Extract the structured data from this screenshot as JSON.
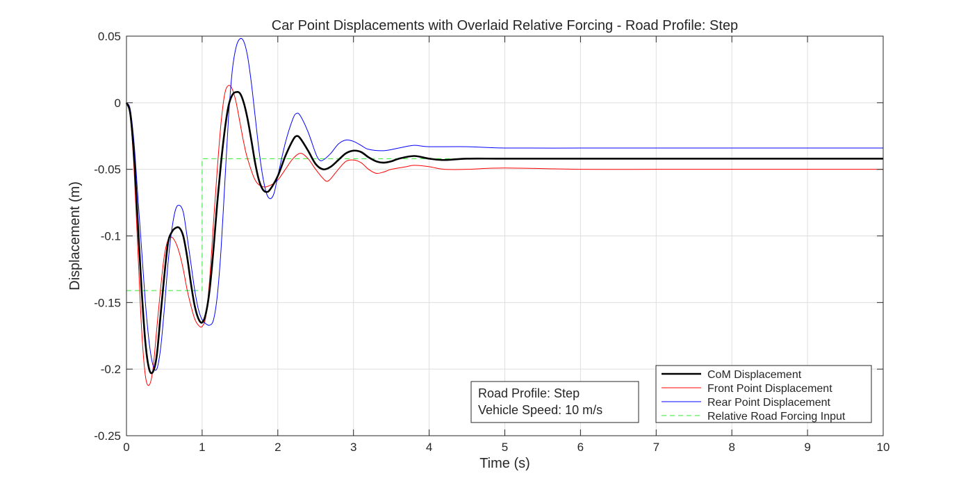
{
  "chart_data": {
    "type": "line",
    "title": "Car Point Displacements with Overlaid Relative Forcing - Road Profile: Step",
    "xlabel": "Time (s)",
    "ylabel": "Displacement (m)",
    "xlim": [
      0,
      10
    ],
    "ylim": [
      -0.25,
      0.05
    ],
    "x_ticks": [
      "0",
      "1",
      "2",
      "3",
      "4",
      "5",
      "6",
      "7",
      "8",
      "9",
      "10"
    ],
    "y_ticks": [
      "-0.25",
      "-0.2",
      "-0.15",
      "-0.1",
      "-0.05",
      "0",
      "0.05"
    ],
    "x_tick_values": [
      0,
      1,
      2,
      3,
      4,
      5,
      6,
      7,
      8,
      9,
      10
    ],
    "y_tick_values": [
      -0.25,
      -0.2,
      -0.15,
      -0.1,
      -0.05,
      0,
      0.05
    ],
    "grid": true,
    "legend_position": "bottom-right",
    "annotation": [
      "Road Profile: Step",
      "Vehicle Speed: 10 m/s"
    ],
    "series": [
      {
        "name": "CoM Displacement",
        "color": "#000000",
        "style": "solid",
        "weight": "thick",
        "x": [
          0,
          0.05,
          0.1,
          0.15,
          0.2,
          0.25,
          0.3,
          0.35,
          0.4,
          0.45,
          0.5,
          0.55,
          0.6,
          0.65,
          0.7,
          0.75,
          0.8,
          0.85,
          0.9,
          0.95,
          1.0,
          1.05,
          1.1,
          1.15,
          1.2,
          1.25,
          1.3,
          1.35,
          1.4,
          1.45,
          1.5,
          1.55,
          1.6,
          1.65,
          1.7,
          1.75,
          1.8,
          1.85,
          1.9,
          2.0,
          2.1,
          2.2,
          2.25,
          2.3,
          2.4,
          2.5,
          2.6,
          2.7,
          2.8,
          2.9,
          3.0,
          3.1,
          3.2,
          3.3,
          3.4,
          3.5,
          3.6,
          3.8,
          4.0,
          4.2,
          4.5,
          5.0,
          6.0,
          7.0,
          8.0,
          9.0,
          10.0
        ],
        "y": [
          0,
          -0.008,
          -0.04,
          -0.09,
          -0.14,
          -0.18,
          -0.2,
          -0.202,
          -0.19,
          -0.16,
          -0.13,
          -0.105,
          -0.097,
          -0.094,
          -0.094,
          -0.1,
          -0.115,
          -0.135,
          -0.152,
          -0.162,
          -0.165,
          -0.158,
          -0.14,
          -0.11,
          -0.075,
          -0.045,
          -0.02,
          -0.002,
          0.006,
          0.008,
          0.007,
          0.0,
          -0.012,
          -0.028,
          -0.045,
          -0.058,
          -0.065,
          -0.067,
          -0.065,
          -0.055,
          -0.04,
          -0.028,
          -0.025,
          -0.027,
          -0.036,
          -0.046,
          -0.05,
          -0.048,
          -0.043,
          -0.038,
          -0.036,
          -0.037,
          -0.041,
          -0.044,
          -0.045,
          -0.044,
          -0.042,
          -0.04,
          -0.042,
          -0.043,
          -0.042,
          -0.042,
          -0.042,
          -0.042,
          -0.042,
          -0.042,
          -0.042
        ]
      },
      {
        "name": "Front Point Displacement",
        "color": "#ff0000",
        "style": "solid",
        "weight": "thin",
        "x": [
          0,
          0.05,
          0.1,
          0.15,
          0.2,
          0.25,
          0.3,
          0.35,
          0.4,
          0.45,
          0.5,
          0.55,
          0.6,
          0.65,
          0.7,
          0.75,
          0.8,
          0.85,
          0.9,
          0.95,
          1.0,
          1.05,
          1.1,
          1.15,
          1.2,
          1.25,
          1.3,
          1.35,
          1.4,
          1.45,
          1.5,
          1.55,
          1.6,
          1.7,
          1.8,
          1.9,
          2.0,
          2.1,
          2.2,
          2.3,
          2.4,
          2.5,
          2.6,
          2.65,
          2.7,
          2.8,
          2.9,
          3.0,
          3.1,
          3.2,
          3.3,
          3.4,
          3.5,
          3.7,
          3.8,
          4.0,
          4.2,
          4.5,
          5.0,
          6.0,
          7.0,
          8.0,
          9.0,
          10.0
        ],
        "y": [
          0,
          -0.01,
          -0.05,
          -0.11,
          -0.17,
          -0.205,
          -0.212,
          -0.2,
          -0.17,
          -0.14,
          -0.115,
          -0.103,
          -0.101,
          -0.105,
          -0.113,
          -0.125,
          -0.14,
          -0.152,
          -0.162,
          -0.167,
          -0.168,
          -0.16,
          -0.132,
          -0.09,
          -0.05,
          -0.015,
          0.007,
          0.013,
          0.01,
          0.0,
          -0.015,
          -0.03,
          -0.042,
          -0.058,
          -0.063,
          -0.062,
          -0.058,
          -0.05,
          -0.042,
          -0.038,
          -0.042,
          -0.05,
          -0.057,
          -0.059,
          -0.057,
          -0.05,
          -0.044,
          -0.043,
          -0.045,
          -0.05,
          -0.053,
          -0.052,
          -0.05,
          -0.048,
          -0.047,
          -0.048,
          -0.05,
          -0.05,
          -0.049,
          -0.05,
          -0.05,
          -0.05,
          -0.05,
          -0.05
        ]
      },
      {
        "name": "Rear Point Displacement",
        "color": "#0000ff",
        "style": "solid",
        "weight": "thin",
        "x": [
          0,
          0.05,
          0.1,
          0.15,
          0.2,
          0.25,
          0.3,
          0.35,
          0.4,
          0.45,
          0.5,
          0.55,
          0.6,
          0.65,
          0.7,
          0.75,
          0.8,
          0.85,
          0.9,
          0.95,
          1.0,
          1.05,
          1.1,
          1.15,
          1.2,
          1.25,
          1.3,
          1.35,
          1.4,
          1.45,
          1.5,
          1.55,
          1.6,
          1.65,
          1.7,
          1.75,
          1.8,
          1.85,
          1.9,
          1.95,
          2.0,
          2.1,
          2.2,
          2.25,
          2.3,
          2.4,
          2.5,
          2.55,
          2.6,
          2.7,
          2.8,
          2.9,
          3.0,
          3.1,
          3.2,
          3.4,
          3.6,
          3.8,
          4.0,
          4.5,
          5.0,
          6.0,
          7.0,
          8.0,
          9.0,
          10.0
        ],
        "y": [
          0,
          -0.005,
          -0.03,
          -0.07,
          -0.11,
          -0.15,
          -0.18,
          -0.197,
          -0.2,
          -0.185,
          -0.155,
          -0.12,
          -0.095,
          -0.08,
          -0.077,
          -0.082,
          -0.1,
          -0.12,
          -0.14,
          -0.155,
          -0.163,
          -0.166,
          -0.167,
          -0.163,
          -0.145,
          -0.11,
          -0.06,
          -0.01,
          0.025,
          0.042,
          0.048,
          0.046,
          0.035,
          0.015,
          -0.01,
          -0.035,
          -0.055,
          -0.068,
          -0.072,
          -0.068,
          -0.055,
          -0.03,
          -0.012,
          -0.008,
          -0.01,
          -0.022,
          -0.038,
          -0.043,
          -0.043,
          -0.038,
          -0.031,
          -0.028,
          -0.029,
          -0.032,
          -0.035,
          -0.036,
          -0.034,
          -0.032,
          -0.033,
          -0.033,
          -0.034,
          -0.034,
          -0.034,
          -0.034,
          -0.034,
          -0.034
        ]
      },
      {
        "name": "Relative Road Forcing Input",
        "color": "#33e633",
        "style": "dashed",
        "weight": "thin",
        "x": [
          0,
          1.0,
          1.0,
          10.0
        ],
        "y": [
          -0.141,
          -0.141,
          -0.042,
          -0.042
        ]
      }
    ]
  }
}
